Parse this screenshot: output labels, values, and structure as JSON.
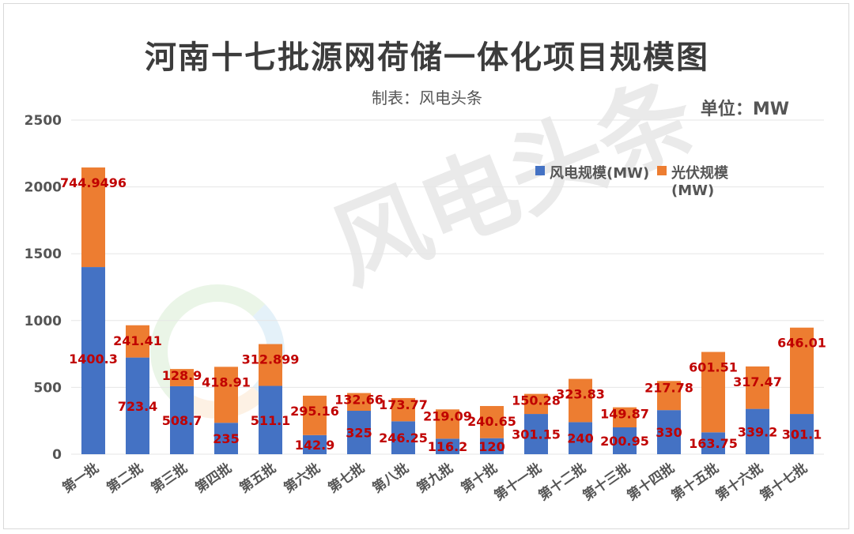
{
  "title": "河南十七批源网荷储一体化项目规模图",
  "subtitle": "制表：风电头条",
  "unit": "单位：MW",
  "watermark": "风电头条",
  "colors": {
    "wind": "#4472c4",
    "solar": "#ed7d31",
    "label": "#c00000",
    "grid": "#e6e6e6"
  },
  "chart_data": {
    "type": "bar",
    "stacked": true,
    "categories": [
      "第一批",
      "第二批",
      "第三批",
      "第四批",
      "第五批",
      "第六批",
      "第七批",
      "第八批",
      "第九批",
      "第十批",
      "第十一批",
      "第十二批",
      "第十三批",
      "第十四批",
      "第十五批",
      "第十六批",
      "第十七批"
    ],
    "series": [
      {
        "name": "风电规模(MW)",
        "values": [
          1400.3,
          723.4,
          508.7,
          235,
          511.1,
          142.9,
          325,
          246.25,
          116.2,
          120,
          301.15,
          240,
          200.95,
          330,
          163.75,
          339.2,
          301.1
        ]
      },
      {
        "name": "光伏规模(MW)",
        "values": [
          744.9496,
          241.41,
          128.9,
          418.91,
          312.899,
          295.16,
          132.66,
          173.77,
          219.09,
          240.65,
          150.28,
          323.83,
          149.87,
          217.78,
          601.51,
          317.47,
          646.01
        ]
      }
    ],
    "data_labels": [
      [
        "1400.3",
        "723.4",
        "508.7",
        "235",
        "511.1",
        "142.9",
        "325",
        "246.25",
        "116.2",
        "120",
        "301.15",
        "240",
        "200.95",
        "330",
        "163.75",
        "339.2",
        "301.1"
      ],
      [
        "744.9496",
        "241.41",
        "128.9",
        "418.91",
        "312.899",
        "295.16",
        "132.66",
        "173.77",
        "219.09",
        "240.65",
        "150.28",
        "323.83",
        "149.87",
        "217.78",
        "601.51",
        "317.47",
        "646.01"
      ]
    ],
    "ylim": [
      0,
      2500
    ],
    "yticks": [
      "0",
      "500",
      "1000",
      "1500",
      "2000",
      "2500"
    ],
    "grid": true,
    "legend": "top-right",
    "xlabel": "",
    "ylabel": ""
  }
}
